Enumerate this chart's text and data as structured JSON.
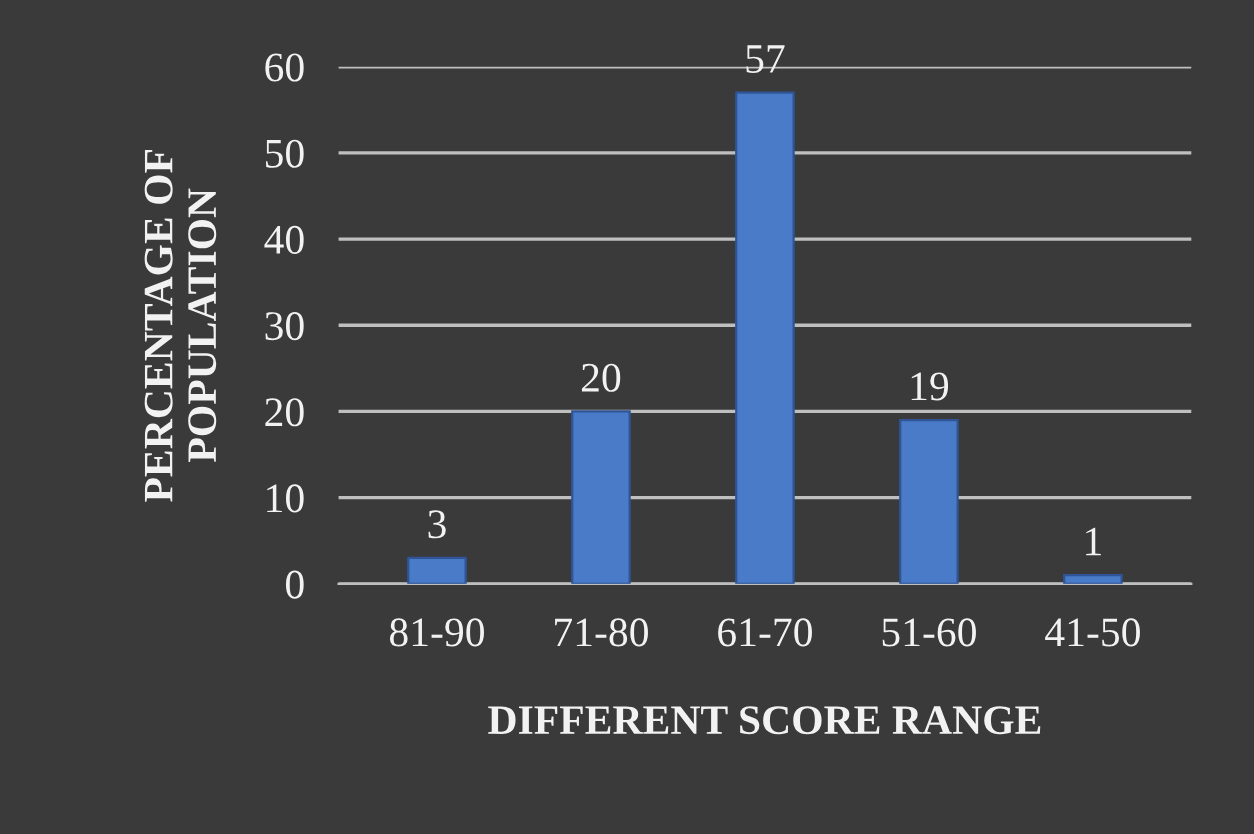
{
  "chart_data": {
    "type": "bar",
    "xlabel": "DIFFERENT SCORE RANGE",
    "ylabel": "PERCENTAGE OF\nPOPULATION",
    "categories": [
      "81-90",
      "71-80",
      "61-70",
      "51-60",
      "41-50"
    ],
    "values": [
      3,
      20,
      57,
      19,
      1
    ],
    "color": "#4a7bc8",
    "ylim": [
      0,
      60
    ],
    "yticks": [
      0,
      10,
      20,
      30,
      40,
      50,
      60
    ],
    "grid": "y",
    "data_labels": true
  }
}
